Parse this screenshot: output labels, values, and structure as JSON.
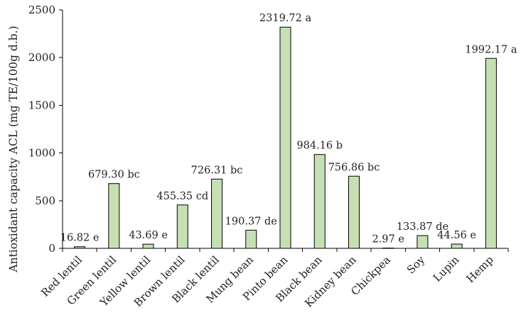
{
  "chart_data": {
    "type": "bar",
    "title": "",
    "xlabel": "",
    "ylabel": "Antioxidant capacity ACL (mg TE/100g d.b.)",
    "ylim": [
      0,
      2500
    ],
    "yticks": [
      0,
      500,
      1000,
      1500,
      2000,
      2500
    ],
    "grid": false,
    "categories": [
      "Red lentil",
      "Green lentil",
      "Yellow lentil",
      "Brown lentil",
      "Black lentil",
      "Mung bean",
      "Pinto bean",
      "Black bean",
      "Kidney bean",
      "Chickpea",
      "Soy",
      "Lupin",
      "Hemp"
    ],
    "values": [
      16.82,
      679.3,
      43.69,
      455.35,
      726.31,
      190.37,
      2319.72,
      984.16,
      756.86,
      2.97,
      133.87,
      44.56,
      1992.17
    ],
    "labels": [
      "16.82 e",
      "679.30 bc",
      "43.69 e",
      "455.35 cd",
      "726.31 bc",
      "190.37 de",
      "2319.72 a",
      "984.16 b",
      "756.86 bc",
      "2.97 e",
      "133.87 de",
      "44.56 e",
      "1992.17 a"
    ],
    "bar_color": "#c6e0b4"
  }
}
